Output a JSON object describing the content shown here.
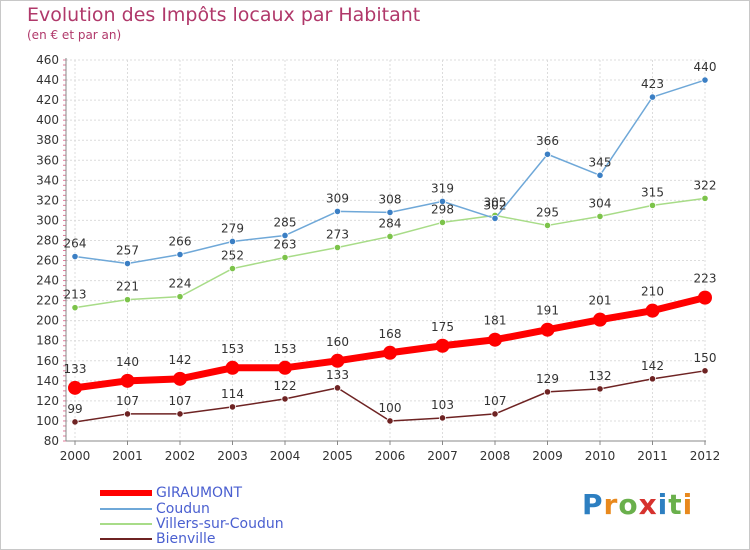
{
  "header": {
    "title": "Evolution des Impôts locaux par Habitant",
    "subtitle": "(en € et par an)"
  },
  "logo": {
    "letters": [
      "P",
      "r",
      "o",
      "x",
      "i",
      "t",
      "i"
    ],
    "colors": [
      "#2d7fc1",
      "#e8891d",
      "#6ab04c",
      "#d6322e",
      "#2d7fc1",
      "#6ab04c",
      "#e8891d"
    ]
  },
  "chart_data": {
    "type": "line",
    "title": "Evolution des Impôts locaux par Habitant",
    "subtitle": "(en € et par an)",
    "categories": [
      "2000",
      "2001",
      "2002",
      "2003",
      "2004",
      "2005",
      "2006",
      "2007",
      "2008",
      "2009",
      "2010",
      "2011",
      "2012"
    ],
    "ylim": [
      80,
      460
    ],
    "yticks": [
      80,
      100,
      120,
      140,
      160,
      180,
      200,
      220,
      240,
      260,
      280,
      300,
      320,
      340,
      360,
      380,
      400,
      420,
      440,
      460
    ],
    "grid": true,
    "legend_position": "bottom-left",
    "series": [
      {
        "name": "GIRAUMONT",
        "color": "#ff0000",
        "marker": "#ff0000",
        "emphasis": true,
        "values": [
          133,
          140,
          142,
          153,
          153,
          160,
          168,
          175,
          181,
          191,
          201,
          210,
          223
        ]
      },
      {
        "name": "Coudun",
        "color": "#6fa8d8",
        "marker": "#3b7fc4",
        "emphasis": false,
        "values": [
          264,
          257,
          266,
          279,
          285,
          309,
          308,
          319,
          302,
          366,
          345,
          423,
          440
        ]
      },
      {
        "name": "Villers-sur-Coudun",
        "color": "#a8dc88",
        "marker": "#7cc34a",
        "emphasis": false,
        "values": [
          213,
          221,
          224,
          252,
          263,
          273,
          284,
          298,
          305,
          295,
          304,
          315,
          322
        ]
      },
      {
        "name": "Bienville",
        "color": "#6e2323",
        "marker": "#6e2323",
        "emphasis": false,
        "values": [
          99,
          107,
          107,
          114,
          122,
          133,
          100,
          103,
          107,
          129,
          132,
          142,
          150
        ]
      }
    ]
  }
}
